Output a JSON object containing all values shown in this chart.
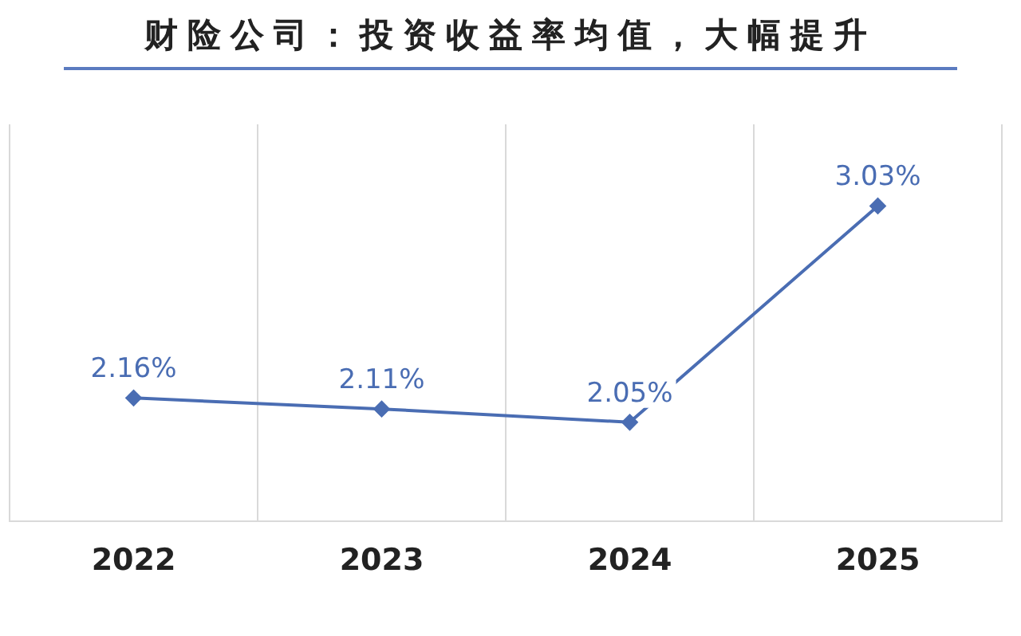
{
  "chart_data": {
    "type": "line",
    "title": "财险公司：投资收益率均值，大幅提升",
    "categories": [
      "2022",
      "2023",
      "2024",
      "2025"
    ],
    "series": [
      {
        "color": "#4a6db3",
        "values": [
          2.16,
          2.11,
          2.05,
          3.03
        ],
        "value_labels": [
          "2.16%",
          "2.11%",
          "2.05%",
          "3.03%"
        ]
      }
    ],
    "grid": "x",
    "legend": false,
    "marker": "diamond",
    "line_style": "solid",
    "tick_labels": "x"
  }
}
